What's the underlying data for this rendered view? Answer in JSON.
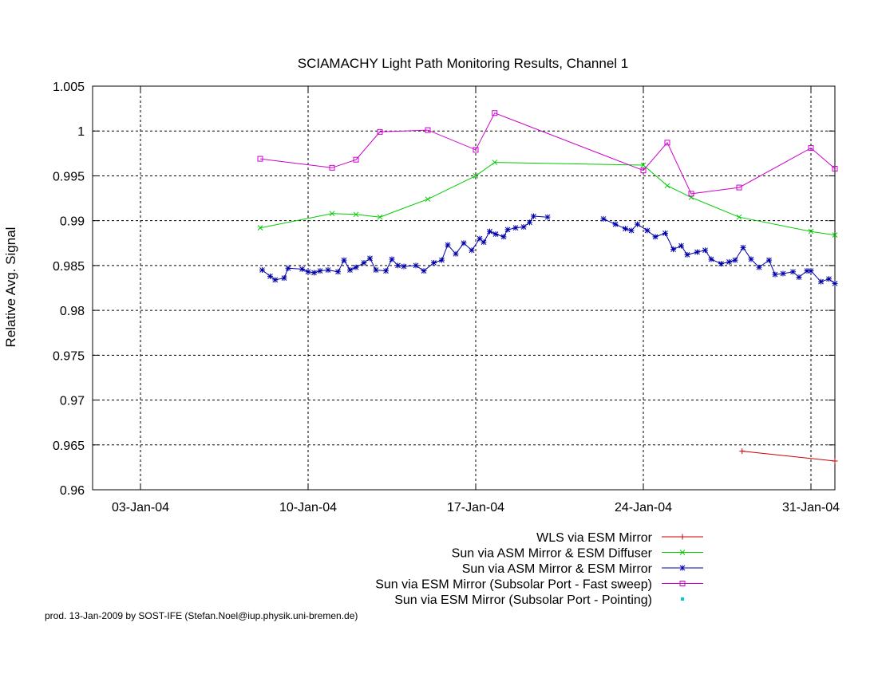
{
  "chart_data": {
    "type": "line",
    "title": "SCIAMACHY Light Path Monitoring Results, Channel 1",
    "xlabel": "",
    "ylabel": "Relative Avg. Signal",
    "xlim": [
      "2004-01-01",
      "2004-02-01"
    ],
    "ylim": [
      0.96,
      1.005
    ],
    "x_ticks": [
      {
        "date": "2004-01-03",
        "label": "03-Jan-04"
      },
      {
        "date": "2004-01-10",
        "label": "10-Jan-04"
      },
      {
        "date": "2004-01-17",
        "label": "17-Jan-04"
      },
      {
        "date": "2004-01-24",
        "label": "24-Jan-04"
      },
      {
        "date": "2004-01-31",
        "label": "31-Jan-04"
      }
    ],
    "y_ticks": [
      {
        "value": 0.96,
        "label": "0.96"
      },
      {
        "value": 0.965,
        "label": "0.965"
      },
      {
        "value": 0.97,
        "label": "0.97"
      },
      {
        "value": 0.975,
        "label": "0.975"
      },
      {
        "value": 0.98,
        "label": "0.98"
      },
      {
        "value": 0.985,
        "label": "0.985"
      },
      {
        "value": 0.99,
        "label": "0.99"
      },
      {
        "value": 0.995,
        "label": "0.995"
      },
      {
        "value": 1.0,
        "label": "1"
      },
      {
        "value": 1.005,
        "label": "1.005"
      }
    ],
    "grid": true,
    "legend_position": "bottom",
    "series": [
      {
        "name": "WLS via ESM Mirror",
        "color": "#cc0000",
        "marker": "plus",
        "segments": [
          [
            [
              "2004-01-28 03:00",
              0.9643
            ],
            [
              "2004-02-01 00:00",
              0.9632
            ]
          ]
        ]
      },
      {
        "name": "Sun via ASM Mirror & ESM Diffuser",
        "color": "#00cc00",
        "marker": "cross",
        "segments": [
          [
            [
              "2004-01-08 00:00",
              0.9892
            ],
            [
              "2004-01-11 00:00",
              0.9908
            ],
            [
              "2004-01-12 00:00",
              0.9907
            ],
            [
              "2004-01-13 00:00",
              0.9904
            ],
            [
              "2004-01-15 00:00",
              0.9924
            ],
            [
              "2004-01-17 00:00",
              0.995
            ],
            [
              "2004-01-17 19:00",
              0.9965
            ],
            [
              "2004-01-24 00:00",
              0.9962
            ],
            [
              "2004-01-25 00:00",
              0.9939
            ],
            [
              "2004-01-26 00:00",
              0.9926
            ],
            [
              "2004-01-28 00:00",
              0.9904
            ],
            [
              "2004-01-31 00:00",
              0.9888
            ],
            [
              "2004-02-01 00:00",
              0.9884
            ]
          ]
        ]
      },
      {
        "name": "Sun via ASM Mirror & ESM Mirror",
        "color": "#0000aa",
        "marker": "star",
        "segments": [
          [
            [
              "2004-01-08 02:00",
              0.9845
            ],
            [
              "2004-01-08 10:00",
              0.9838
            ],
            [
              "2004-01-08 15:00",
              0.9834
            ],
            [
              "2004-01-09 00:00",
              0.9836
            ],
            [
              "2004-01-09 04:00",
              0.9847
            ],
            [
              "2004-01-09 18:00",
              0.9846
            ],
            [
              "2004-01-10 00:00",
              0.9843
            ],
            [
              "2004-01-10 06:00",
              0.9842
            ],
            [
              "2004-01-10 12:00",
              0.9844
            ],
            [
              "2004-01-10 20:00",
              0.9845
            ],
            [
              "2004-01-11 06:00",
              0.9843
            ],
            [
              "2004-01-11 12:00",
              0.9856
            ],
            [
              "2004-01-11 18:00",
              0.9845
            ],
            [
              "2004-01-12 00:00",
              0.9848
            ],
            [
              "2004-01-12 08:00",
              0.9853
            ],
            [
              "2004-01-12 14:00",
              0.9858
            ],
            [
              "2004-01-12 20:00",
              0.9845
            ],
            [
              "2004-01-13 06:00",
              0.9844
            ],
            [
              "2004-01-13 12:00",
              0.9857
            ],
            [
              "2004-01-13 18:00",
              0.985
            ],
            [
              "2004-01-14 00:00",
              0.9849
            ],
            [
              "2004-01-14 12:00",
              0.985
            ],
            [
              "2004-01-14 20:00",
              0.9844
            ],
            [
              "2004-01-15 06:00",
              0.9853
            ],
            [
              "2004-01-15 14:00",
              0.9856
            ],
            [
              "2004-01-15 20:00",
              0.9873
            ],
            [
              "2004-01-16 04:00",
              0.9863
            ],
            [
              "2004-01-16 12:00",
              0.9875
            ],
            [
              "2004-01-16 20:00",
              0.9867
            ],
            [
              "2004-01-17 04:00",
              0.988
            ],
            [
              "2004-01-17 08:00",
              0.9876
            ],
            [
              "2004-01-17 14:00",
              0.9888
            ],
            [
              "2004-01-17 20:00",
              0.9885
            ],
            [
              "2004-01-18 04:00",
              0.9882
            ],
            [
              "2004-01-18 08:00",
              0.989
            ],
            [
              "2004-01-18 16:00",
              0.9892
            ],
            [
              "2004-01-19 00:00",
              0.9893
            ],
            [
              "2004-01-19 06:00",
              0.9898
            ],
            [
              "2004-01-19 10:00",
              0.9905
            ],
            [
              "2004-01-20 00:00",
              0.9904
            ]
          ],
          [
            [
              "2004-01-22 08:00",
              0.9902
            ],
            [
              "2004-01-22 20:00",
              0.9896
            ],
            [
              "2004-01-23 06:00",
              0.9891
            ],
            [
              "2004-01-23 12:00",
              0.9889
            ],
            [
              "2004-01-23 18:00",
              0.9896
            ],
            [
              "2004-01-24 04:00",
              0.9889
            ],
            [
              "2004-01-24 12:00",
              0.9882
            ],
            [
              "2004-01-24 22:00",
              0.9886
            ],
            [
              "2004-01-25 06:00",
              0.9868
            ],
            [
              "2004-01-25 14:00",
              0.9872
            ],
            [
              "2004-01-25 20:00",
              0.9862
            ],
            [
              "2004-01-26 06:00",
              0.9865
            ],
            [
              "2004-01-26 14:00",
              0.9867
            ],
            [
              "2004-01-26 20:00",
              0.9857
            ],
            [
              "2004-01-27 06:00",
              0.9852
            ],
            [
              "2004-01-27 14:00",
              0.9854
            ],
            [
              "2004-01-27 20:00",
              0.9856
            ],
            [
              "2004-01-28 04:00",
              0.987
            ],
            [
              "2004-01-28 12:00",
              0.9857
            ],
            [
              "2004-01-28 20:00",
              0.9848
            ],
            [
              "2004-01-29 06:00",
              0.9856
            ],
            [
              "2004-01-29 12:00",
              0.984
            ],
            [
              "2004-01-29 20:00",
              0.9841
            ],
            [
              "2004-01-30 06:00",
              0.9843
            ],
            [
              "2004-01-30 12:00",
              0.9837
            ],
            [
              "2004-01-30 20:00",
              0.9844
            ],
            [
              "2004-01-31 00:00",
              0.9844
            ],
            [
              "2004-01-31 10:00",
              0.9832
            ],
            [
              "2004-01-31 18:00",
              0.9835
            ],
            [
              "2004-02-01 00:00",
              0.983
            ]
          ]
        ]
      },
      {
        "name": "Sun via ESM Mirror (Subsolar Port - Fast sweep)",
        "color": "#cc00cc",
        "marker": "square",
        "segments": [
          [
            [
              "2004-01-08 00:00",
              0.9969
            ],
            [
              "2004-01-11 00:00",
              0.9959
            ],
            [
              "2004-01-12 00:00",
              0.9968
            ],
            [
              "2004-01-13 00:00",
              0.9999
            ],
            [
              "2004-01-15 00:00",
              1.0001
            ],
            [
              "2004-01-17 00:00",
              0.9979
            ],
            [
              "2004-01-17 19:00",
              1.002
            ],
            [
              "2004-01-24 00:00",
              0.9956
            ],
            [
              "2004-01-25 00:00",
              0.9987
            ],
            [
              "2004-01-26 00:00",
              0.993
            ],
            [
              "2004-01-28 00:00",
              0.9937
            ],
            [
              "2004-01-31 00:00",
              0.9981
            ],
            [
              "2004-02-01 00:00",
              0.9958
            ]
          ]
        ]
      },
      {
        "name": "Sun via ESM Mirror (Subsolar Port - Pointing)",
        "color": "#00cccc",
        "marker": "dot",
        "segments": []
      }
    ],
    "footer": "prod. 13-Jan-2009 by SOST-IFE (Stefan.Noel@iup.physik.uni-bremen.de)"
  }
}
